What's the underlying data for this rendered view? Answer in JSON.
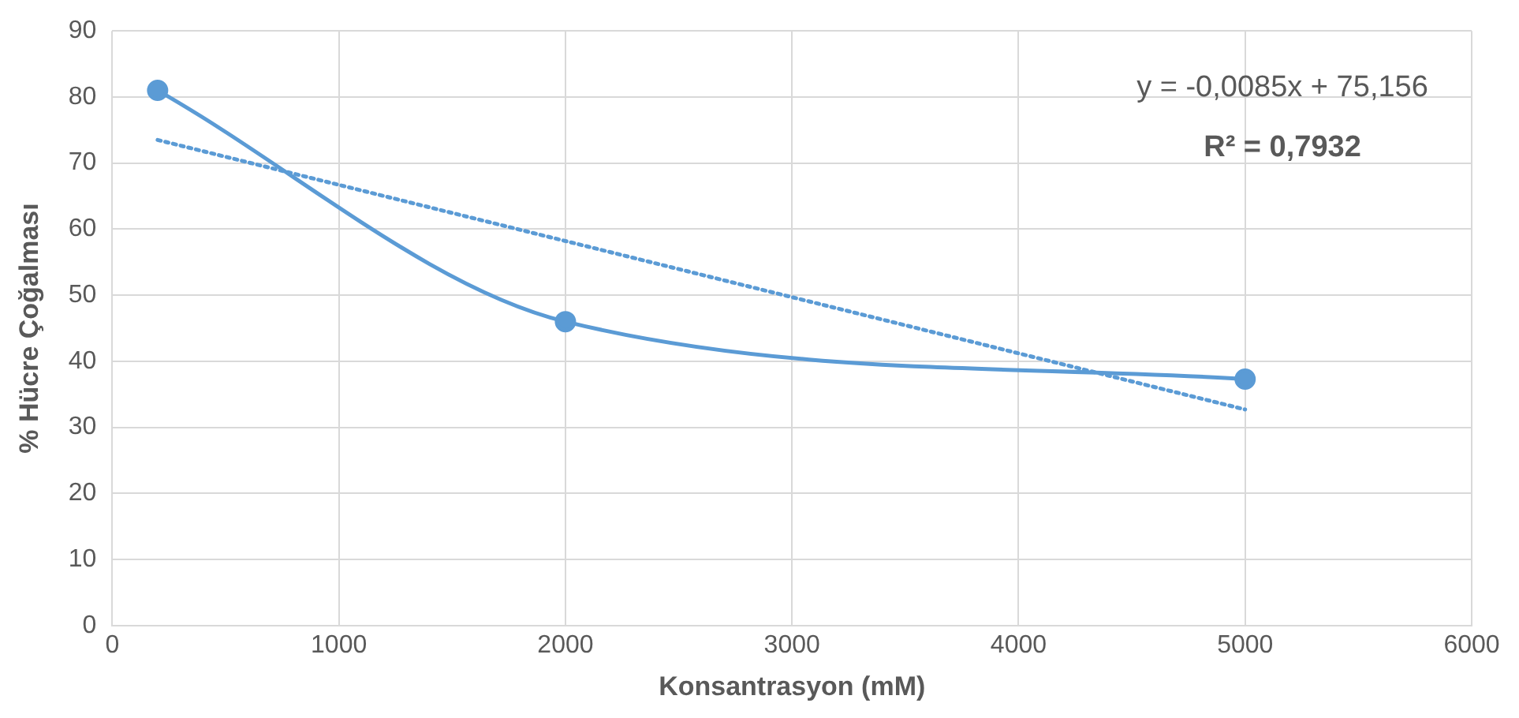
{
  "chart_data": {
    "type": "line",
    "xlabel": "Konsantrasyon (mM)",
    "ylabel": "% Hücre Çoğalması",
    "xlim": [
      0,
      6000
    ],
    "xticks": [
      0,
      1000,
      2000,
      3000,
      4000,
      5000,
      6000
    ],
    "ylim": [
      0,
      90
    ],
    "yticks": [
      0,
      10,
      20,
      30,
      40,
      50,
      60,
      70,
      80,
      90
    ],
    "grid": true,
    "legend": false,
    "series": [
      {
        "x": [
          200,
          2000,
          5000
        ],
        "values": [
          81,
          46,
          37.3
        ],
        "color": "#5b9bd5",
        "marker": "circle",
        "line_style": "solid"
      },
      {
        "type": "line",
        "x": [
          200,
          5000
        ],
        "values": [
          73.5,
          32.7
        ],
        "color": "#5b9bd5",
        "marker": "none",
        "line_style": "dotted"
      }
    ],
    "annotations": [
      "y = -0,0085x + 75,156",
      "R² = 0,7932"
    ]
  }
}
